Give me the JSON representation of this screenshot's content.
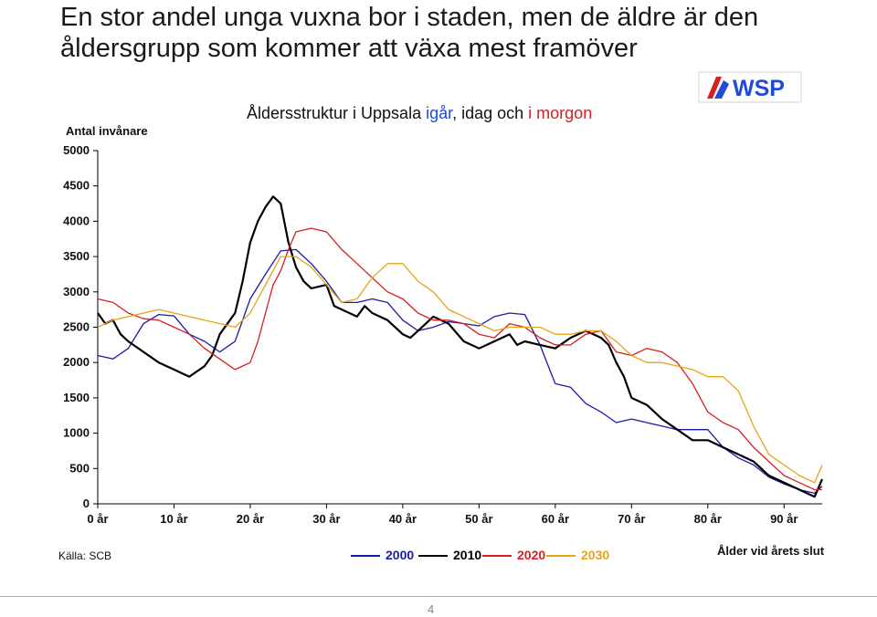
{
  "slide": {
    "title": "En stor andel unga vuxna bor i staden, men de äldre är den åldersgrupp som kommer att växa mest framöver",
    "logo_text": "WSP",
    "source": "Källa: SCB",
    "page_number": "4"
  },
  "chart_data": {
    "type": "line",
    "title_parts": {
      "part1": "Åldersstruktur i Uppsala ",
      "part2": "igår",
      "part3": ", idag och ",
      "part4": "i morgon"
    },
    "ylabel": "Antal invånare",
    "xlabel": "Ålder vid årets slut",
    "ylim": [
      0,
      5000
    ],
    "xlim": [
      0,
      95
    ],
    "yticks": [
      "0",
      "500",
      "1000",
      "1500",
      "2000",
      "2500",
      "3000",
      "3500",
      "4000",
      "4500",
      "5000"
    ],
    "xticks": [
      "0 år",
      "10 år",
      "20 år",
      "30 år",
      "40 år",
      "50 år",
      "60 år",
      "70 år",
      "80 år",
      "90 år"
    ],
    "colors": {
      "2000": "#1a1aa8",
      "2010": "#000000",
      "2020": "#d42020",
      "2030": "#e8a317"
    },
    "series": [
      {
        "name": "2000",
        "color": "#1a1aa8",
        "x": [
          0,
          2,
          4,
          6,
          8,
          10,
          12,
          14,
          16,
          18,
          20,
          22,
          24,
          26,
          28,
          30,
          32,
          34,
          36,
          38,
          40,
          42,
          44,
          46,
          48,
          50,
          52,
          54,
          56,
          58,
          60,
          62,
          64,
          66,
          68,
          70,
          72,
          74,
          76,
          78,
          80,
          82,
          84,
          86,
          88,
          90,
          92,
          94,
          95
        ],
        "y": [
          2100,
          2050,
          2200,
          2550,
          2680,
          2660,
          2400,
          2300,
          2150,
          2300,
          2900,
          3250,
          3580,
          3600,
          3400,
          3150,
          2850,
          2850,
          2900,
          2850,
          2600,
          2450,
          2500,
          2580,
          2550,
          2520,
          2650,
          2700,
          2680,
          2250,
          1700,
          1650,
          1420,
          1300,
          1150,
          1200,
          1150,
          1100,
          1050,
          1050,
          1050,
          800,
          650,
          550,
          380,
          280,
          200,
          150,
          250
        ]
      },
      {
        "name": "2010",
        "color": "#000000",
        "x": [
          0,
          1,
          2,
          3,
          4,
          6,
          8,
          10,
          12,
          14,
          15,
          16,
          18,
          19,
          20,
          21,
          22,
          23,
          24,
          25,
          26,
          27,
          28,
          30,
          31,
          32,
          34,
          35,
          36,
          38,
          40,
          41,
          42,
          44,
          46,
          48,
          50,
          52,
          54,
          55,
          56,
          58,
          60,
          62,
          64,
          66,
          67,
          68,
          69,
          70,
          72,
          74,
          76,
          78,
          80,
          82,
          84,
          86,
          88,
          90,
          92,
          94,
          95
        ],
        "y": [
          2700,
          2550,
          2600,
          2400,
          2300,
          2150,
          2000,
          1900,
          1800,
          1950,
          2100,
          2400,
          2700,
          3150,
          3700,
          4000,
          4200,
          4350,
          4250,
          3700,
          3350,
          3150,
          3050,
          3100,
          2800,
          2750,
          2650,
          2800,
          2700,
          2600,
          2400,
          2350,
          2450,
          2650,
          2550,
          2300,
          2200,
          2300,
          2400,
          2250,
          2300,
          2250,
          2200,
          2350,
          2450,
          2350,
          2250,
          2000,
          1800,
          1500,
          1400,
          1200,
          1050,
          900,
          900,
          800,
          700,
          600,
          400,
          300,
          200,
          100,
          350
        ]
      },
      {
        "name": "2020",
        "color": "#d42020",
        "x": [
          0,
          2,
          4,
          6,
          8,
          10,
          12,
          14,
          16,
          18,
          20,
          21,
          22,
          23,
          24,
          25,
          26,
          28,
          30,
          32,
          34,
          36,
          38,
          40,
          42,
          44,
          46,
          48,
          50,
          52,
          54,
          56,
          58,
          60,
          62,
          64,
          66,
          68,
          70,
          72,
          74,
          76,
          78,
          80,
          82,
          84,
          86,
          88,
          90,
          92,
          94,
          95
        ],
        "y": [
          2900,
          2850,
          2700,
          2620,
          2600,
          2500,
          2400,
          2200,
          2050,
          1900,
          2000,
          2300,
          2700,
          3100,
          3300,
          3600,
          3850,
          3900,
          3850,
          3600,
          3400,
          3200,
          3000,
          2900,
          2700,
          2600,
          2600,
          2550,
          2400,
          2350,
          2550,
          2500,
          2350,
          2250,
          2250,
          2400,
          2450,
          2150,
          2100,
          2200,
          2150,
          2000,
          1700,
          1300,
          1150,
          1050,
          800,
          600,
          400,
          300,
          200,
          200
        ]
      },
      {
        "name": "2030",
        "color": "#e8a317",
        "x": [
          0,
          2,
          4,
          6,
          8,
          10,
          12,
          14,
          16,
          18,
          20,
          22,
          24,
          26,
          28,
          30,
          32,
          34,
          36,
          38,
          40,
          42,
          44,
          46,
          48,
          50,
          52,
          54,
          56,
          58,
          60,
          62,
          64,
          66,
          68,
          70,
          72,
          74,
          76,
          78,
          80,
          82,
          84,
          86,
          88,
          90,
          92,
          94,
          95
        ],
        "y": [
          2500,
          2600,
          2650,
          2700,
          2750,
          2700,
          2650,
          2600,
          2550,
          2500,
          2700,
          3100,
          3500,
          3500,
          3350,
          3100,
          2850,
          2900,
          3200,
          3400,
          3400,
          3150,
          3000,
          2750,
          2650,
          2550,
          2450,
          2500,
          2500,
          2500,
          2400,
          2400,
          2450,
          2450,
          2300,
          2100,
          2000,
          2000,
          1950,
          1900,
          1800,
          1800,
          1600,
          1100,
          700,
          550,
          400,
          300,
          550
        ]
      }
    ]
  }
}
